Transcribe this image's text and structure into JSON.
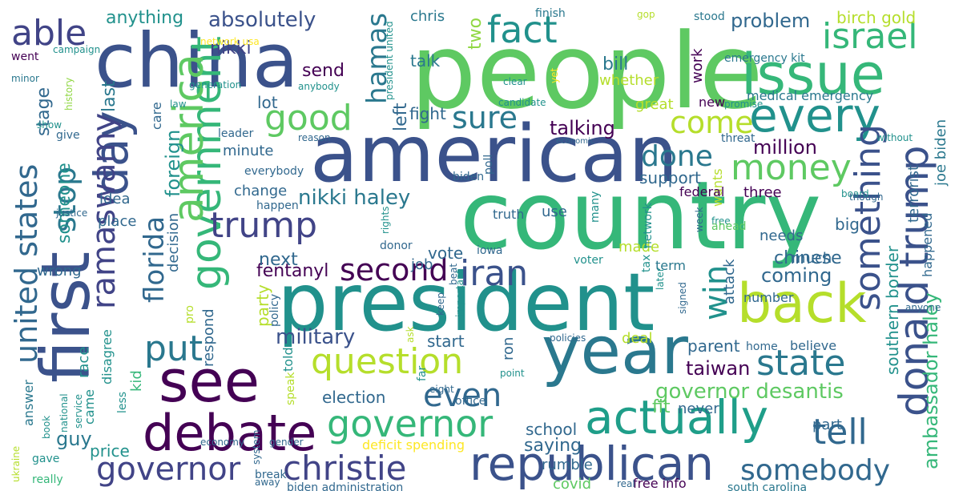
{
  "palette": {
    "dark_purple": "#440154",
    "indigo": "#3b528b",
    "slate_blue": "#414487",
    "blue": "#31688e",
    "teal_blue": "#2a788e",
    "teal": "#21918c",
    "sea_green": "#1f9e89",
    "green": "#35b779",
    "leaf_green": "#5ec962",
    "lime": "#90d743",
    "yellow_green": "#b5de2b",
    "yellow": "#fde725"
  },
  "words": [
    {
      "text": "people",
      "color": "#5ec962"
    },
    {
      "text": "country",
      "color": "#35b779"
    },
    {
      "text": "president",
      "color": "#21918c"
    },
    {
      "text": "american",
      "color": "#3b528b"
    },
    {
      "text": "china",
      "color": "#3b528b"
    },
    {
      "text": "first",
      "color": "#3b528b"
    },
    {
      "text": "year",
      "color": "#2a788e"
    },
    {
      "text": "issue",
      "color": "#35b779"
    },
    {
      "text": "back",
      "color": "#b5de2b"
    },
    {
      "text": "see",
      "color": "#440154"
    },
    {
      "text": "debate",
      "color": "#440154"
    },
    {
      "text": "republican",
      "color": "#3b528b"
    },
    {
      "text": "actually",
      "color": "#1f9e89"
    },
    {
      "text": "every",
      "color": "#21918c"
    },
    {
      "text": "day",
      "color": "#3b528b"
    },
    {
      "text": "government",
      "color": "#35b779"
    },
    {
      "text": "america",
      "color": "#5ec962"
    },
    {
      "text": "donald trump",
      "color": "#3b528b"
    },
    {
      "text": "governor",
      "color": "#35b779"
    },
    {
      "text": "governor",
      "color": "#414487"
    },
    {
      "text": "christie",
      "color": "#414487"
    },
    {
      "text": "question",
      "color": "#b5de2b"
    },
    {
      "text": "something",
      "color": "#3b528b"
    },
    {
      "text": "united states",
      "color": "#31688e"
    },
    {
      "text": "trump",
      "color": "#414487"
    },
    {
      "text": "ramaswamy",
      "color": "#414487"
    },
    {
      "text": "money",
      "color": "#5ec962"
    },
    {
      "text": "even",
      "color": "#31688e"
    },
    {
      "text": "state",
      "color": "#2a788e"
    },
    {
      "text": "tell",
      "color": "#31688e"
    },
    {
      "text": "good",
      "color": "#5ec962"
    },
    {
      "text": "fact",
      "color": "#21918c"
    },
    {
      "text": "israel",
      "color": "#35b779"
    },
    {
      "text": "put",
      "color": "#2a788e"
    },
    {
      "text": "second",
      "color": "#440154"
    },
    {
      "text": "iran",
      "color": "#3b528b"
    },
    {
      "text": "somebody",
      "color": "#31688e"
    },
    {
      "text": "hamas",
      "color": "#2a788e"
    },
    {
      "text": "able",
      "color": "#414487"
    },
    {
      "text": "come",
      "color": "#b5de2b"
    },
    {
      "text": "sure",
      "color": "#2a788e"
    },
    {
      "text": "done",
      "color": "#2a788e"
    },
    {
      "text": "florida",
      "color": "#31688e"
    },
    {
      "text": "stop",
      "color": "#2a788e"
    },
    {
      "text": "win",
      "color": "#21918c"
    },
    {
      "text": "ambassador haley",
      "color": "#35b779"
    },
    {
      "text": "absolutely",
      "color": "#3b528b"
    },
    {
      "text": "governor desantis",
      "color": "#5ec962"
    },
    {
      "text": "nikki haley",
      "color": "#2a788e"
    },
    {
      "text": "talking",
      "color": "#440154"
    },
    {
      "text": "military",
      "color": "#3b528b"
    },
    {
      "text": "fentanyl",
      "color": "#440154"
    },
    {
      "text": "taiwan",
      "color": "#440154"
    },
    {
      "text": "problem",
      "color": "#31688e"
    },
    {
      "text": "million",
      "color": "#440154"
    },
    {
      "text": "foreign",
      "color": "#21918c"
    },
    {
      "text": "guy",
      "color": "#2a788e"
    },
    {
      "text": "someone",
      "color": "#21918c"
    },
    {
      "text": "chinese",
      "color": "#31688e"
    },
    {
      "text": "coming",
      "color": "#31688e"
    },
    {
      "text": "next",
      "color": "#31688e"
    },
    {
      "text": "price",
      "color": "#21918c"
    },
    {
      "text": "anything",
      "color": "#21918c"
    },
    {
      "text": "nikki",
      "color": "#414487"
    },
    {
      "text": "send",
      "color": "#440154"
    },
    {
      "text": "last",
      "color": "#2a788e"
    },
    {
      "text": "stage",
      "color": "#31688e"
    },
    {
      "text": "bill",
      "color": "#2a788e"
    },
    {
      "text": "talk",
      "color": "#2a788e"
    },
    {
      "text": "two",
      "color": "#90d743"
    },
    {
      "text": "left",
      "color": "#31688e"
    },
    {
      "text": "lot",
      "color": "#31688e"
    },
    {
      "text": "fight",
      "color": "#31688e"
    },
    {
      "text": "work",
      "color": "#440154"
    },
    {
      "text": "whether",
      "color": "#b5de2b"
    },
    {
      "text": "birch gold",
      "color": "#b5de2b"
    },
    {
      "text": "emergency kit",
      "color": "#2a788e"
    },
    {
      "text": "medical emergency",
      "color": "#2a788e"
    },
    {
      "text": "joe biden",
      "color": "#2a788e"
    },
    {
      "text": "terrorist",
      "color": "#31688e"
    },
    {
      "text": "southern border",
      "color": "#21918c"
    },
    {
      "text": "happened",
      "color": "#31688e"
    },
    {
      "text": "wants",
      "color": "#b5de2b"
    },
    {
      "text": "support",
      "color": "#31688e"
    },
    {
      "text": "change",
      "color": "#31688e"
    },
    {
      "text": "minute",
      "color": "#31688e"
    },
    {
      "text": "idea",
      "color": "#31688e"
    },
    {
      "text": "place",
      "color": "#31688e"
    },
    {
      "text": "decision",
      "color": "#31688e"
    },
    {
      "text": "respond",
      "color": "#31688e"
    },
    {
      "text": "wrong",
      "color": "#31688e"
    },
    {
      "text": "vote",
      "color": "#31688e"
    },
    {
      "text": "made",
      "color": "#b5de2b"
    },
    {
      "text": "start",
      "color": "#31688e"
    },
    {
      "text": "deal",
      "color": "#b5de2b"
    },
    {
      "text": "parent",
      "color": "#31688e"
    },
    {
      "text": "needs",
      "color": "#31688e"
    },
    {
      "text": "much",
      "color": "#31688e"
    },
    {
      "text": "big",
      "color": "#31688e"
    },
    {
      "text": "three",
      "color": "#440154"
    },
    {
      "text": "federal",
      "color": "#440154"
    },
    {
      "text": "use",
      "color": "#31688e"
    },
    {
      "text": "truth",
      "color": "#31688e"
    },
    {
      "text": "job",
      "color": "#31688e"
    },
    {
      "text": "election",
      "color": "#31688e"
    },
    {
      "text": "school",
      "color": "#31688e"
    },
    {
      "text": "saying",
      "color": "#31688e"
    },
    {
      "text": "fit",
      "color": "#5ec962"
    },
    {
      "text": "never",
      "color": "#31688e"
    },
    {
      "text": "part",
      "color": "#31688e"
    },
    {
      "text": "rumble",
      "color": "#31688e"
    },
    {
      "text": "deficit spending",
      "color": "#fde725"
    },
    {
      "text": "covid",
      "color": "#5ec962"
    },
    {
      "text": "free info",
      "color": "#440154"
    },
    {
      "text": "south carolina",
      "color": "#2a788e"
    },
    {
      "text": "biden administration",
      "color": "#31688e"
    },
    {
      "text": "break",
      "color": "#31688e"
    },
    {
      "text": "really",
      "color": "#35b779"
    },
    {
      "text": "ukraine",
      "color": "#b5de2b"
    },
    {
      "text": "gave",
      "color": "#21918c"
    },
    {
      "text": "book",
      "color": "#21918c"
    },
    {
      "text": "national",
      "color": "#21918c"
    },
    {
      "text": "service",
      "color": "#21918c"
    },
    {
      "text": "less",
      "color": "#21918c"
    },
    {
      "text": "came",
      "color": "#21918c"
    },
    {
      "text": "answer",
      "color": "#2a788e"
    },
    {
      "text": "race",
      "color": "#21918c"
    },
    {
      "text": "disagree",
      "color": "#21918c"
    },
    {
      "text": "kid",
      "color": "#35b779"
    },
    {
      "text": "party",
      "color": "#b5de2b"
    },
    {
      "text": "policy",
      "color": "#31688e"
    },
    {
      "text": "told",
      "color": "#21918c"
    },
    {
      "text": "ron",
      "color": "#31688e"
    },
    {
      "text": "attack",
      "color": "#31688e"
    },
    {
      "text": "number",
      "color": "#31688e"
    },
    {
      "text": "believe",
      "color": "#31688e"
    },
    {
      "text": "home",
      "color": "#31688e"
    },
    {
      "text": "term",
      "color": "#2a788e"
    },
    {
      "text": "tax",
      "color": "#21918c"
    },
    {
      "text": "network",
      "color": "#21918c"
    },
    {
      "text": "voter",
      "color": "#21918c"
    },
    {
      "text": "chris",
      "color": "#2a788e"
    },
    {
      "text": "finish",
      "color": "#2a788e"
    },
    {
      "text": "gop",
      "color": "#b5de2b"
    },
    {
      "text": "stood",
      "color": "#2a788e"
    },
    {
      "text": "went",
      "color": "#440154"
    },
    {
      "text": "campaign",
      "color": "#21918c"
    },
    {
      "text": "network usa",
      "color": "#fde725"
    },
    {
      "text": "minor",
      "color": "#2a788e"
    },
    {
      "text": "generation",
      "color": "#21918c"
    },
    {
      "text": "anybody",
      "color": "#21918c"
    },
    {
      "text": "president united",
      "color": "#21918c"
    },
    {
      "text": "clear",
      "color": "#21918c"
    },
    {
      "text": "yet",
      "color": "#fde725"
    },
    {
      "text": "history",
      "color": "#90d743"
    },
    {
      "text": "law",
      "color": "#21918c"
    },
    {
      "text": "show",
      "color": "#21918c"
    },
    {
      "text": "give",
      "color": "#31688e"
    },
    {
      "text": "care",
      "color": "#31688e"
    },
    {
      "text": "leader",
      "color": "#31688e"
    },
    {
      "text": "reason",
      "color": "#31688e"
    },
    {
      "text": "economic",
      "color": "#31688e"
    },
    {
      "text": "candidate",
      "color": "#21918c"
    },
    {
      "text": "great",
      "color": "#b5de2b"
    },
    {
      "text": "new",
      "color": "#440154"
    },
    {
      "text": "promise",
      "color": "#21918c"
    },
    {
      "text": "threat",
      "color": "#31688e"
    },
    {
      "text": "without",
      "color": "#21918c"
    },
    {
      "text": "everybody",
      "color": "#31688e"
    },
    {
      "text": "biden",
      "color": "#31688e"
    },
    {
      "text": "poll",
      "color": "#31688e"
    },
    {
      "text": "justice",
      "color": "#31688e"
    },
    {
      "text": "happen",
      "color": "#31688e"
    },
    {
      "text": "rights",
      "color": "#21918c"
    },
    {
      "text": "many",
      "color": "#21918c"
    },
    {
      "text": "week",
      "color": "#31688e"
    },
    {
      "text": "free",
      "color": "#21918c"
    },
    {
      "text": "board",
      "color": "#21918c"
    },
    {
      "text": "ahead",
      "color": "#5ec962"
    },
    {
      "text": "though",
      "color": "#31688e"
    },
    {
      "text": "donor",
      "color": "#31688e"
    },
    {
      "text": "iowa",
      "color": "#31688e"
    },
    {
      "text": "beat",
      "color": "#31688e"
    },
    {
      "text": "important",
      "color": "#21918c"
    },
    {
      "text": "later",
      "color": "#21918c"
    },
    {
      "text": "signed",
      "color": "#31688e"
    },
    {
      "text": "keep",
      "color": "#31688e"
    },
    {
      "text": "policies",
      "color": "#31688e"
    },
    {
      "text": "pro",
      "color": "#b5de2b"
    },
    {
      "text": "speak",
      "color": "#b5de2b"
    },
    {
      "text": "system",
      "color": "#31688e"
    },
    {
      "text": "ask",
      "color": "#b5de2b"
    },
    {
      "text": "far",
      "color": "#21918c"
    },
    {
      "text": "point",
      "color": "#21918c"
    },
    {
      "text": "eight",
      "color": "#31688e"
    },
    {
      "text": "office",
      "color": "#31688e"
    },
    {
      "text": "gender",
      "color": "#31688e"
    },
    {
      "text": "economy",
      "color": "#31688e"
    },
    {
      "text": "anyone",
      "color": "#31688e"
    },
    {
      "text": "away",
      "color": "#31688e"
    },
    {
      "text": "real",
      "color": "#31688e"
    }
  ]
}
